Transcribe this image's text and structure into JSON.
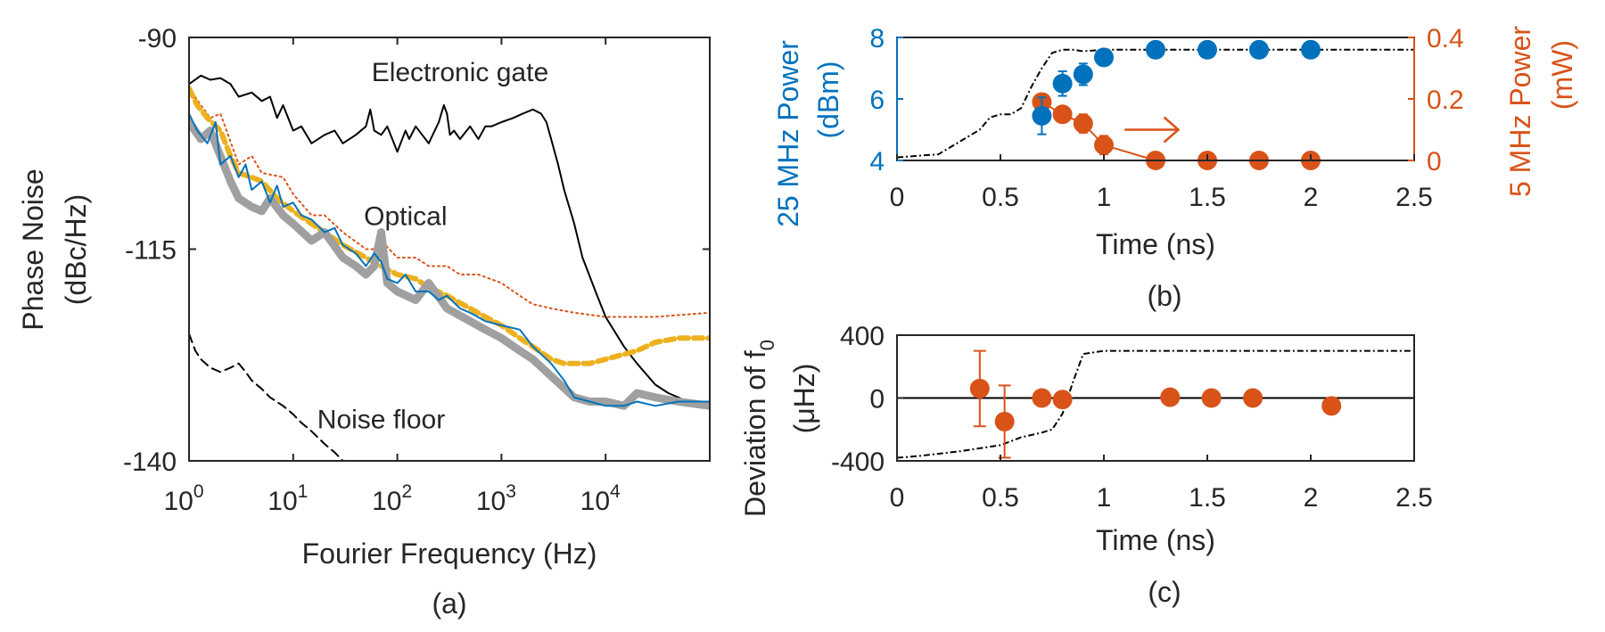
{
  "figure": {
    "colors": {
      "axis": "#262626",
      "blue": "#0072BD",
      "orange": "#D95319",
      "yellow": "#EDB120",
      "gray": "#A0A0A0",
      "black": "#000000"
    }
  },
  "chart_data": [
    {
      "id": "a",
      "type": "line",
      "panel_label": "(a)",
      "xlabel": "Fourier Frequency (Hz)",
      "ylabel": "Phase Noise (dBc/Hz)",
      "ylabel_lines": [
        "Phase Noise",
        "(dBc/Hz)"
      ],
      "x_scale": "log",
      "xlim": [
        1,
        100000
      ],
      "ylim": [
        -140,
        -90
      ],
      "x_ticks": [
        {
          "value": 1,
          "base": "10",
          "exp": "0"
        },
        {
          "value": 10,
          "base": "10",
          "exp": "1"
        },
        {
          "value": 100,
          "base": "10",
          "exp": "2"
        },
        {
          "value": 1000,
          "base": "10",
          "exp": "3"
        },
        {
          "value": 10000,
          "base": "10",
          "exp": "4"
        }
      ],
      "y_ticks": [
        {
          "value": -90,
          "label": "-90"
        },
        {
          "value": -115,
          "label": "-115"
        },
        {
          "value": -140,
          "label": "-140"
        }
      ],
      "annotations": [
        {
          "text": "Electronic gate",
          "x": 400,
          "y": -94
        },
        {
          "text": "Optical",
          "x": 120,
          "y": -111
        },
        {
          "text": "Noise floor",
          "x": 70,
          "y": -135
        }
      ],
      "series": [
        {
          "style": "solid",
          "color": "black",
          "width": 2,
          "x": [
            1,
            1.3,
            1.6,
            2,
            2.5,
            3,
            4,
            5,
            6,
            7,
            8,
            10,
            12,
            15,
            20,
            25,
            30,
            40,
            50,
            55,
            60,
            70,
            80,
            100,
            120,
            130,
            150,
            200,
            250,
            280,
            300,
            320,
            350,
            400,
            500,
            600,
            700,
            800,
            1000,
            1300,
            1600,
            2000,
            2400,
            2700,
            3000,
            3500,
            4000,
            5000,
            6000,
            8000,
            10000,
            15000,
            20000,
            30000,
            40000,
            50000,
            60000,
            80000,
            100000
          ],
          "y": [
            -95.5,
            -94.5,
            -95,
            -94.8,
            -95.5,
            -97,
            -96.5,
            -97.5,
            -97,
            -99.5,
            -98,
            -101,
            -100.5,
            -102.5,
            -101.5,
            -101,
            -102.5,
            -101.5,
            -100.5,
            -98.5,
            -101,
            -101.5,
            -100.5,
            -103.5,
            -101,
            -102,
            -100.5,
            -102.5,
            -100,
            -98,
            -99,
            -101.5,
            -101,
            -102,
            -100.5,
            -102,
            -100.5,
            -100.5,
            -100,
            -99.5,
            -99,
            -98.5,
            -99,
            -100,
            -102,
            -105,
            -108,
            -112,
            -116,
            -120,
            -123,
            -126.5,
            -128.5,
            -131,
            -132,
            -132.5,
            -133,
            -133.5,
            -133.5
          ]
        },
        {
          "style": "dotted",
          "color": "orange",
          "width": 2,
          "x": [
            1,
            1.3,
            1.6,
            2,
            3,
            4,
            5,
            8,
            10,
            15,
            20,
            30,
            50,
            60,
            70,
            100,
            150,
            200,
            300,
            400,
            600,
            1000,
            1500,
            2000,
            3000,
            5000,
            10000,
            30000,
            100000
          ],
          "y": [
            -96,
            -98,
            -99.5,
            -99,
            -105,
            -104,
            -106,
            -106.5,
            -108.5,
            -111,
            -111,
            -113,
            -115,
            -115,
            -114,
            -116,
            -116,
            -117,
            -117,
            -118,
            -118,
            -119,
            -120.5,
            -121.5,
            -122,
            -122.5,
            -123,
            -123,
            -122.5
          ]
        },
        {
          "style": "dashed",
          "color": "yellow",
          "width": 6,
          "x": [
            1,
            1.2,
            1.5,
            2,
            2.5,
            3,
            4,
            5,
            7,
            10,
            15,
            20,
            30,
            50,
            70,
            100,
            150,
            200,
            300,
            500,
            700,
            1000,
            1500,
            2000,
            3000,
            4000,
            5000,
            7000,
            10000,
            20000,
            30000,
            50000,
            100000
          ],
          "y": [
            -96,
            -98,
            -99.5,
            -101,
            -104,
            -106,
            -106.5,
            -107,
            -109,
            -110.5,
            -112,
            -113,
            -114.5,
            -116,
            -117,
            -118,
            -118.5,
            -119.5,
            -120.5,
            -122,
            -123,
            -124,
            -125.5,
            -126.5,
            -128,
            -128.5,
            -128.5,
            -128.5,
            -128,
            -127,
            -126,
            -125.5,
            -125.5
          ]
        },
        {
          "style": "solid",
          "color": "gray",
          "width": 9,
          "x": [
            1,
            1.3,
            1.6,
            2,
            2.5,
            3,
            4,
            5,
            6,
            8,
            10,
            15,
            20,
            30,
            40,
            50,
            60,
            70,
            80,
            100,
            150,
            200,
            300,
            500,
            700,
            1000,
            1500,
            2000,
            3000,
            5000,
            7000,
            10000,
            15000,
            20000,
            30000,
            50000,
            100000
          ],
          "y": [
            -100,
            -102,
            -101,
            -104,
            -107,
            -109,
            -110,
            -110.5,
            -109,
            -111,
            -112,
            -114,
            -113,
            -116,
            -117,
            -118,
            -117,
            -113,
            -119,
            -120,
            -121,
            -119,
            -122,
            -123.5,
            -124.5,
            -125.5,
            -127,
            -128,
            -130,
            -132.5,
            -133,
            -133,
            -133.5,
            -132,
            -132.5,
            -133,
            -133.5
          ]
        },
        {
          "style": "solid",
          "color": "blue",
          "width": 2,
          "x": [
            1,
            1.2,
            1.5,
            1.8,
            2,
            2.5,
            3,
            3.5,
            4,
            5,
            6,
            7,
            8,
            10,
            12,
            15,
            20,
            25,
            30,
            40,
            50,
            60,
            70,
            80,
            100,
            120,
            150,
            200,
            250,
            300,
            400,
            500,
            700,
            1000,
            1500,
            2000,
            3000,
            4000,
            5000,
            7000,
            10000,
            15000,
            20000,
            30000,
            50000,
            100000
          ],
          "y": [
            -99,
            -101,
            -102.5,
            -100,
            -105,
            -104,
            -106.5,
            -105,
            -108,
            -107,
            -109.5,
            -107.5,
            -110,
            -109.5,
            -111,
            -111.5,
            -113,
            -112.5,
            -114.5,
            -115.5,
            -117,
            -115.5,
            -116.5,
            -118.5,
            -119,
            -118,
            -120,
            -120,
            -121,
            -120.5,
            -122,
            -122.5,
            -123.5,
            -124,
            -124.5,
            -126.5,
            -128.5,
            -130.5,
            -132.5,
            -133,
            -133.5,
            -133.5,
            -133,
            -133.5,
            -133,
            -133
          ]
        },
        {
          "style": "dashed",
          "color": "black",
          "width": 2,
          "x": [
            1,
            1.15,
            1.3,
            1.6,
            2,
            2.5,
            3,
            3.5,
            4,
            5,
            6,
            8,
            10,
            12,
            15,
            20,
            25,
            30
          ],
          "y": [
            -125,
            -127,
            -128,
            -129,
            -129.5,
            -129,
            -128.5,
            -129.5,
            -130.5,
            -131.5,
            -132.5,
            -133.5,
            -134.5,
            -135.5,
            -136.5,
            -138,
            -139,
            -140
          ]
        }
      ]
    },
    {
      "id": "b",
      "type": "scatter",
      "panel_label": "(b)",
      "xlabel": "Time (ns)",
      "ylabel_left": "25 MHz Power (dBm)",
      "ylabel_left_lines": [
        "25 MHz Power",
        "(dBm)"
      ],
      "ylabel_right": "5 MHz Power (mW)",
      "ylabel_right_lines": [
        "5 MHz Power",
        "(mW)"
      ],
      "xlim": [
        0,
        2.5
      ],
      "ylim_left": [
        4,
        8
      ],
      "ylim_right": [
        0,
        0.4
      ],
      "x_ticks": [
        {
          "value": 0,
          "label": "0"
        },
        {
          "value": 0.5,
          "label": "0.5"
        },
        {
          "value": 1,
          "label": "1"
        },
        {
          "value": 1.5,
          "label": "1.5"
        },
        {
          "value": 2,
          "label": "2"
        },
        {
          "value": 2.5,
          "label": "2.5"
        }
      ],
      "y_ticks_left": [
        {
          "value": 4,
          "label": "4"
        },
        {
          "value": 6,
          "label": "6"
        },
        {
          "value": 8,
          "label": "8"
        }
      ],
      "y_ticks_right": [
        {
          "value": 0,
          "label": "0"
        },
        {
          "value": 0.2,
          "label": "0.2"
        },
        {
          "value": 0.4,
          "label": "0.4"
        }
      ],
      "series": [
        {
          "axis": "left",
          "color": "blue",
          "marker": "circle",
          "line": false,
          "x": [
            0.7,
            0.8,
            0.9,
            1.0,
            1.25,
            1.5,
            1.75,
            2.0
          ],
          "y": [
            5.45,
            6.5,
            6.8,
            7.35,
            7.6,
            7.6,
            7.6,
            7.6
          ],
          "err": [
            0.6,
            0.4,
            0.35,
            0.15,
            0.1,
            0.1,
            0.1,
            0.1
          ]
        },
        {
          "axis": "right",
          "color": "orange",
          "marker": "circle",
          "line": true,
          "x": [
            0.7,
            0.8,
            0.9,
            1.0,
            1.25,
            1.5,
            1.75,
            2.0
          ],
          "y": [
            0.19,
            0.15,
            0.12,
            0.05,
            0.0,
            0.0,
            0.0,
            0.0
          ],
          "err": [
            0.02,
            0.02,
            0.03,
            0.03,
            0.0,
            0.0,
            0.0,
            0.0
          ]
        },
        {
          "axis": "left",
          "color": "black",
          "style": "dashdot",
          "line": true,
          "x": [
            0,
            0.1,
            0.2,
            0.3,
            0.4,
            0.45,
            0.5,
            0.55,
            0.6,
            0.65,
            0.7,
            0.75,
            0.8,
            0.85,
            0.9,
            1.0,
            1.2,
            1.5,
            2.0,
            2.5
          ],
          "y": [
            4.1,
            4.15,
            4.2,
            4.6,
            5.0,
            5.4,
            5.5,
            5.5,
            5.7,
            6.4,
            7.0,
            7.5,
            7.6,
            7.6,
            7.55,
            7.6,
            7.6,
            7.6,
            7.6,
            7.6
          ]
        }
      ]
    },
    {
      "id": "c",
      "type": "scatter",
      "panel_label": "(c)",
      "xlabel": "Time (ns)",
      "ylabel": "Deviation of f0 (μHz)",
      "ylabel_line1": "Deviation of f",
      "ylabel_line1_sub": "0",
      "ylabel_line2": "(μHz)",
      "xlim": [
        0,
        2.5
      ],
      "ylim": [
        -400,
        400
      ],
      "x_ticks": [
        {
          "value": 0,
          "label": "0"
        },
        {
          "value": 0.5,
          "label": "0.5"
        },
        {
          "value": 1,
          "label": "1"
        },
        {
          "value": 1.5,
          "label": "1.5"
        },
        {
          "value": 2,
          "label": "2"
        },
        {
          "value": 2.5,
          "label": "2.5"
        }
      ],
      "y_ticks": [
        {
          "value": -400,
          "label": "-400"
        },
        {
          "value": 0,
          "label": "0"
        },
        {
          "value": 400,
          "label": "400"
        }
      ],
      "series": [
        {
          "color": "orange",
          "marker": "circle",
          "line": false,
          "x": [
            0.4,
            0.52,
            0.7,
            0.8,
            1.32,
            1.52,
            1.72,
            2.1
          ],
          "y": [
            60,
            -150,
            0,
            -10,
            5,
            0,
            0,
            -50
          ],
          "err": [
            240,
            230,
            0,
            0,
            0,
            0,
            0,
            0
          ]
        },
        {
          "color": "black",
          "style": "dashdot",
          "line": true,
          "x": [
            0,
            0.1,
            0.3,
            0.5,
            0.6,
            0.7,
            0.75,
            0.8,
            0.85,
            0.9,
            1.0,
            1.2,
            1.5,
            2.0,
            2.5
          ],
          "y": [
            -380,
            -370,
            -340,
            -300,
            -250,
            -220,
            -200,
            -100,
            100,
            280,
            300,
            300,
            300,
            300,
            300
          ]
        }
      ]
    }
  ]
}
